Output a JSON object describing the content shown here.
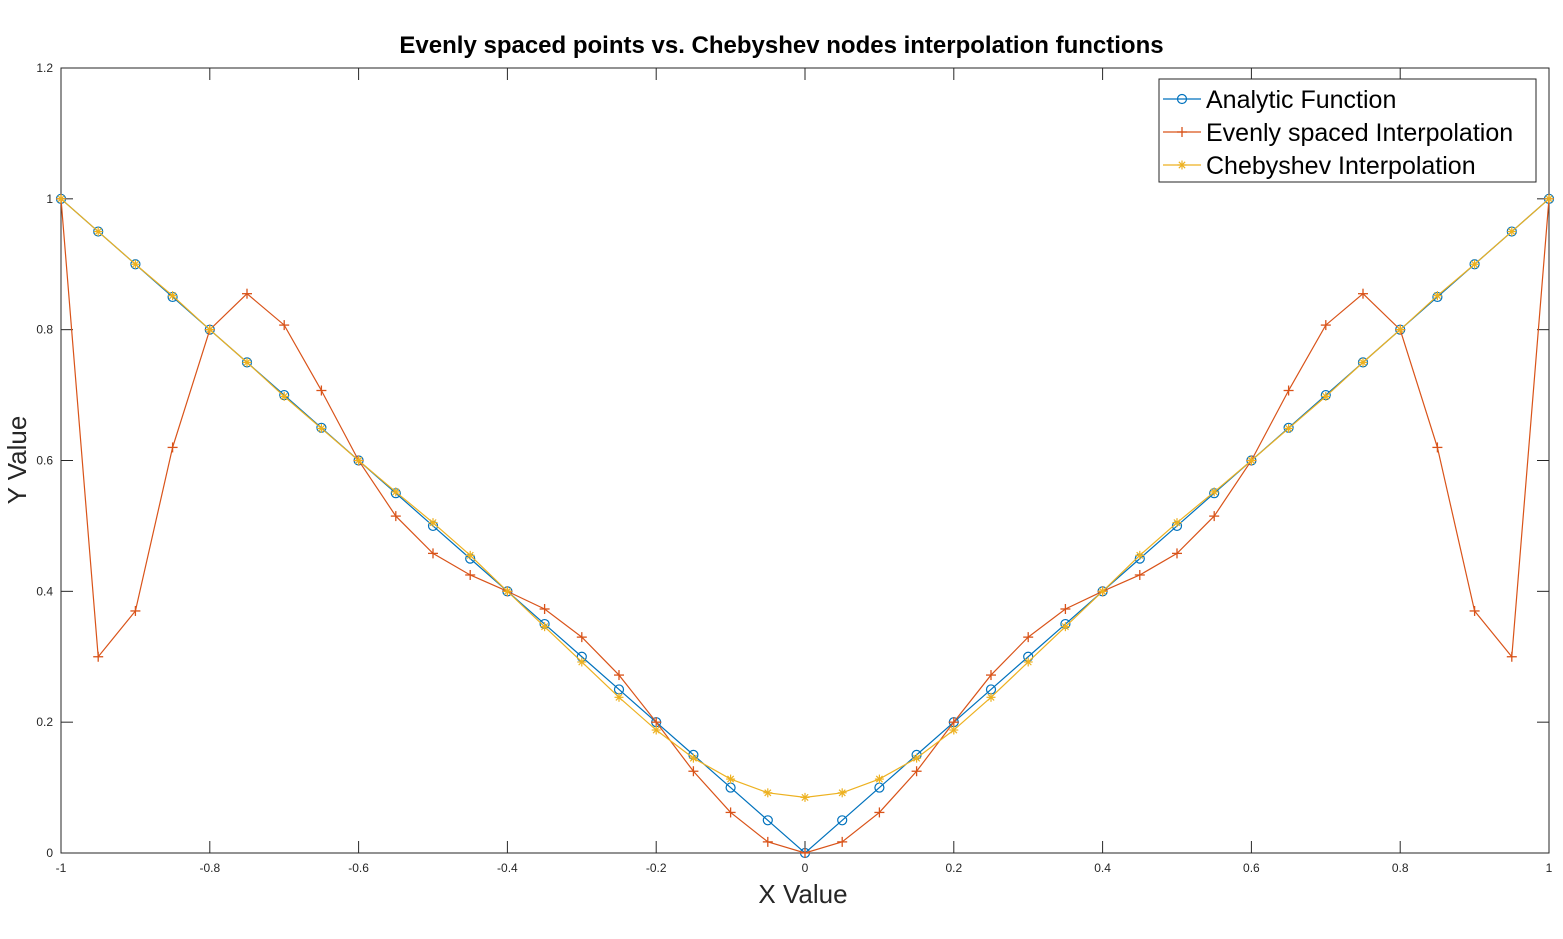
{
  "chart_data": {
    "type": "line",
    "title": "Evenly spaced points vs. Chebyshev nodes interpolation functions",
    "xlabel": "X Value",
    "ylabel": "Y Value",
    "xlim": [
      -1,
      1
    ],
    "ylim": [
      0,
      1.2
    ],
    "grid": false,
    "legend_position": "top-right",
    "x_ticks": [
      -1,
      -0.8,
      -0.6,
      -0.4,
      -0.2,
      0,
      0.2,
      0.4,
      0.6,
      0.8,
      1
    ],
    "x_tick_labels": [
      "-1",
      "-0.8",
      "-0.6",
      "-0.4",
      "-0.2",
      "0",
      "0.2",
      "0.4",
      "0.6",
      "0.8",
      "1"
    ],
    "y_ticks": [
      0,
      0.2,
      0.4,
      0.6,
      0.8,
      1,
      1.2
    ],
    "y_tick_labels": [
      "0",
      "0.2",
      "0.4",
      "0.6",
      "0.8",
      "1",
      "1.2"
    ],
    "x": [
      -1,
      -0.95,
      -0.9,
      -0.85,
      -0.8,
      -0.75,
      -0.7,
      -0.65,
      -0.6,
      -0.55,
      -0.5,
      -0.45,
      -0.4,
      -0.35,
      -0.3,
      -0.25,
      -0.2,
      -0.15,
      -0.1,
      -0.05,
      0,
      0.05,
      0.1,
      0.15,
      0.2,
      0.25,
      0.3,
      0.35,
      0.4,
      0.45,
      0.5,
      0.55,
      0.6,
      0.65,
      0.7,
      0.75,
      0.8,
      0.85,
      0.9,
      0.95,
      1
    ],
    "series": [
      {
        "name": "Analytic Function",
        "color": "#0072BD",
        "marker": "circle",
        "values": [
          1,
          0.95,
          0.9,
          0.85,
          0.8,
          0.75,
          0.7,
          0.65,
          0.6,
          0.55,
          0.5,
          0.45,
          0.4,
          0.35,
          0.3,
          0.25,
          0.2,
          0.15,
          0.1,
          0.05,
          0,
          0.05,
          0.1,
          0.15,
          0.2,
          0.25,
          0.3,
          0.35,
          0.4,
          0.45,
          0.5,
          0.55,
          0.6,
          0.65,
          0.7,
          0.75,
          0.8,
          0.85,
          0.9,
          0.95,
          1
        ]
      },
      {
        "name": "Evenly spaced Interpolation",
        "color": "#D95319",
        "marker": "plus",
        "values": [
          1,
          0.3,
          0.37,
          0.62,
          0.8,
          0.855,
          0.807,
          0.707,
          0.6,
          0.515,
          0.458,
          0.425,
          0.4,
          0.373,
          0.33,
          0.272,
          0.2,
          0.125,
          0.062,
          0.017,
          0,
          0.017,
          0.062,
          0.125,
          0.2,
          0.272,
          0.33,
          0.373,
          0.4,
          0.425,
          0.458,
          0.515,
          0.6,
          0.707,
          0.807,
          0.855,
          0.8,
          0.62,
          0.37,
          0.3,
          1
        ]
      },
      {
        "name": "Chebyshev Interpolation",
        "color": "#EDB120",
        "marker": "asterisk",
        "values": [
          1,
          0.95,
          0.9,
          0.852,
          0.8,
          0.75,
          0.698,
          0.649,
          0.6,
          0.552,
          0.505,
          0.455,
          0.4,
          0.346,
          0.292,
          0.238,
          0.188,
          0.145,
          0.113,
          0.092,
          0.085,
          0.092,
          0.113,
          0.145,
          0.188,
          0.238,
          0.292,
          0.346,
          0.4,
          0.455,
          0.505,
          0.552,
          0.6,
          0.649,
          0.698,
          0.75,
          0.8,
          0.852,
          0.9,
          0.95,
          1
        ]
      }
    ]
  }
}
